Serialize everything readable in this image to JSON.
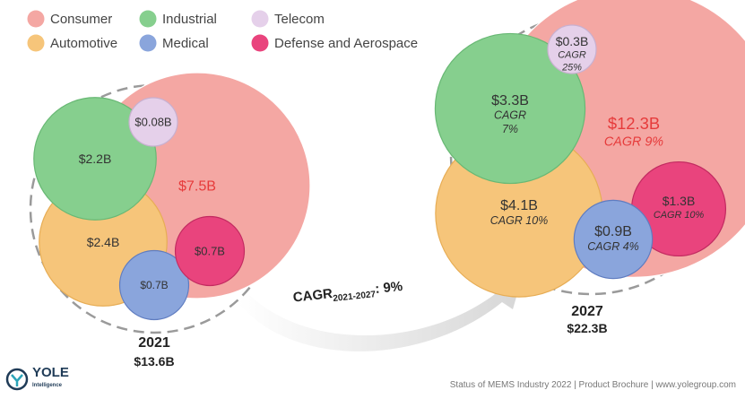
{
  "colors": {
    "Consumer": "#f4a7a3",
    "Industrial": "#86cf8e",
    "Telecom": "#e5d0ea",
    "Automotive": "#f6c57a",
    "Medical": "#8aa5dc",
    "Defense and Aerospace": "#e9447d"
  },
  "chart_data": {
    "type": "bubble",
    "legend": [
      "Consumer",
      "Industrial",
      "Telecom",
      "Automotive",
      "Medical",
      "Defense and Aerospace"
    ],
    "groups": [
      {
        "year": "2021",
        "total": "$13.6B",
        "bubbles": [
          {
            "segment": "Consumer",
            "value": 7.5,
            "label": "$7.5B",
            "cagr": ""
          },
          {
            "segment": "Automotive",
            "value": 2.4,
            "label": "$2.4B",
            "cagr": ""
          },
          {
            "segment": "Industrial",
            "value": 2.2,
            "label": "$2.2B",
            "cagr": ""
          },
          {
            "segment": "Medical",
            "value": 0.7,
            "label": "$0.7B",
            "cagr": ""
          },
          {
            "segment": "Defense and Aerospace",
            "value": 0.7,
            "label": "$0.7B",
            "cagr": ""
          },
          {
            "segment": "Telecom",
            "value": 0.08,
            "label": "$0.08B",
            "cagr": ""
          }
        ]
      },
      {
        "year": "2027",
        "total": "$22.3B",
        "bubbles": [
          {
            "segment": "Consumer",
            "value": 12.3,
            "label": "$12.3B",
            "cagr": "CAGR 9%"
          },
          {
            "segment": "Automotive",
            "value": 4.1,
            "label": "$4.1B",
            "cagr": "CAGR 10%"
          },
          {
            "segment": "Industrial",
            "value": 3.3,
            "label": "$3.3B",
            "cagr": "CAGR 7%"
          },
          {
            "segment": "Defense and Aerospace",
            "value": 1.3,
            "label": "$1.3B",
            "cagr": "CAGR 10%"
          },
          {
            "segment": "Medical",
            "value": 0.9,
            "label": "$0.9B",
            "cagr": "CAGR 4%"
          },
          {
            "segment": "Telecom",
            "value": 0.3,
            "label": "$0.3B",
            "cagr": "CAGR 25%"
          }
        ]
      }
    ],
    "growth_label": {
      "main": "CAGR",
      "sub": "2021-2027",
      "value": ": 9%"
    }
  },
  "footer": {
    "source": "Status of MEMS Industry 2022 | Product Brochure | www.yolegroup.com",
    "logo_name": "YOLE",
    "logo_sub": "Intelligence"
  }
}
